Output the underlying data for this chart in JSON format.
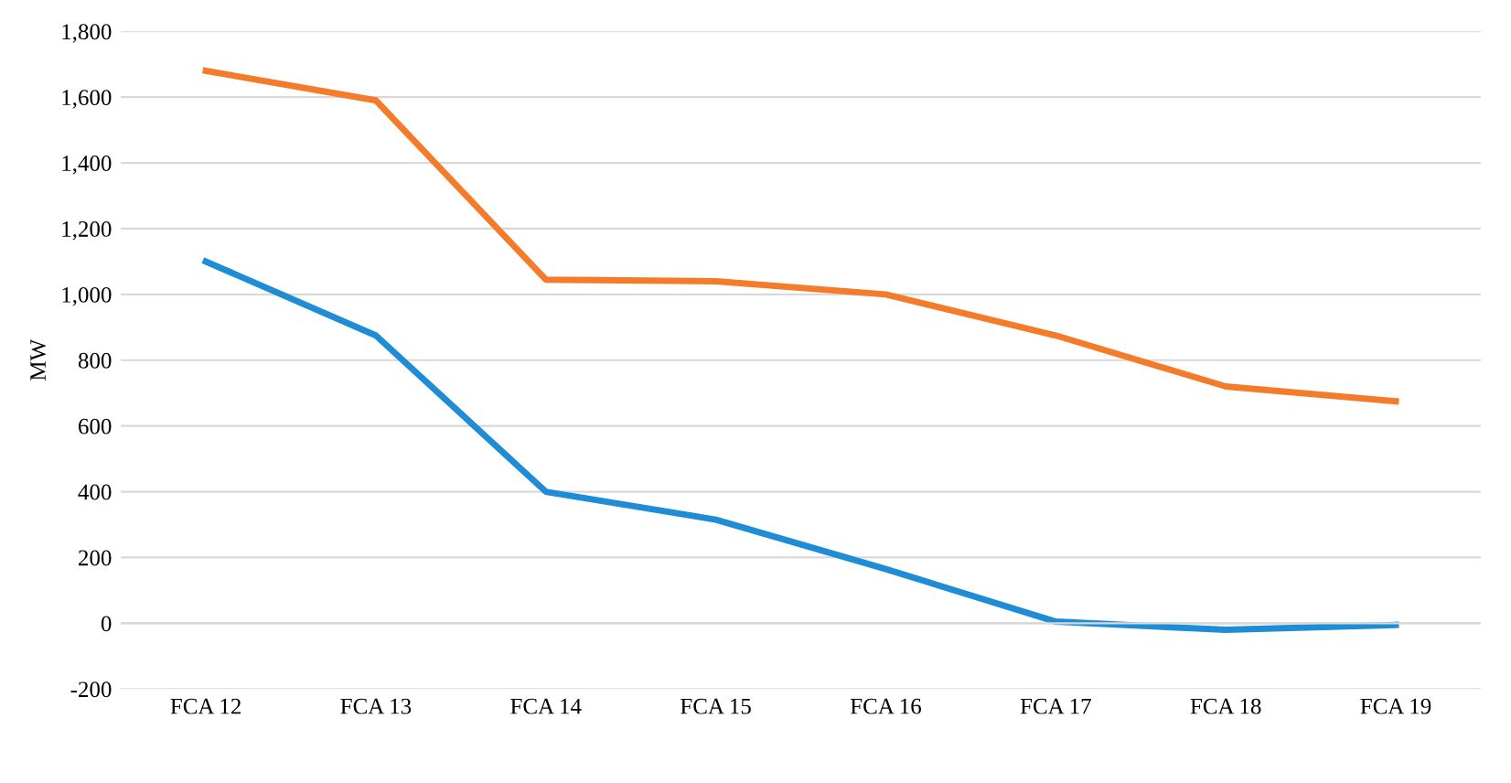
{
  "chart_data": {
    "type": "line",
    "ylabel": "MW",
    "categories": [
      "FCA 12",
      "FCA 13",
      "FCA 14",
      "FCA 15",
      "FCA 16",
      "FCA 17",
      "FCA 18",
      "FCA 19"
    ],
    "series": [
      {
        "color": "#1f8dd6",
        "values": [
          1100,
          875,
          400,
          315,
          165,
          5,
          -20,
          -5
        ]
      },
      {
        "color": "#f47b2a",
        "values": [
          1680,
          1590,
          1045,
          1040,
          1000,
          875,
          720,
          675
        ]
      }
    ],
    "ylim": [
      -200,
      1800
    ],
    "yticks": [
      {
        "value": -200,
        "label": "-200"
      },
      0,
      200,
      400,
      600,
      800,
      {
        "value": 1000,
        "label": "1,000"
      },
      {
        "value": 1200,
        "label": "1,200"
      },
      {
        "value": 1400,
        "label": "1,400"
      },
      {
        "value": 1600,
        "label": "1,600"
      },
      {
        "value": 1800,
        "label": "1,800"
      }
    ],
    "grid": "y",
    "marker": "none",
    "line_style": "solid"
  }
}
